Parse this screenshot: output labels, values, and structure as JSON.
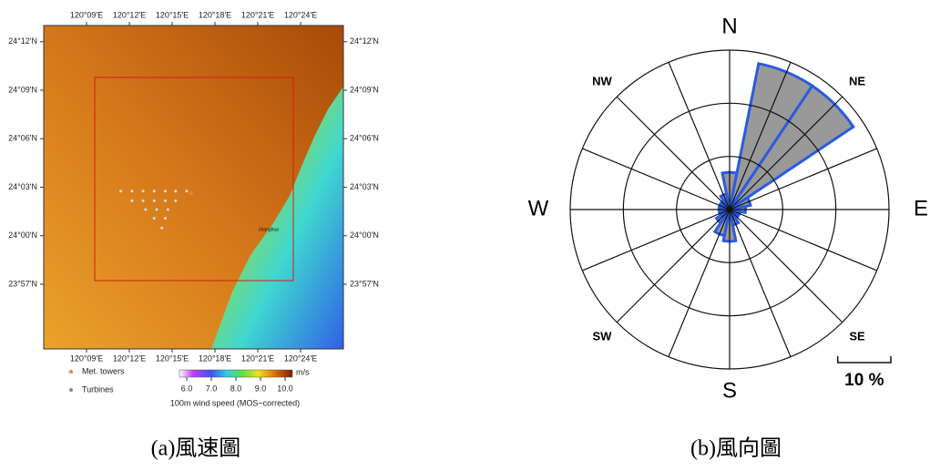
{
  "chart_data": [
    {
      "type": "map",
      "caption": "(a)風速圖",
      "xlim": [
        120.1,
        120.45
      ],
      "ylim": [
        23.8833,
        24.2167
      ],
      "xticks": [
        {
          "value": 120.15,
          "label": "120°09'E"
        },
        {
          "value": 120.2,
          "label": "120°12'E"
        },
        {
          "value": 120.25,
          "label": "120°15'E"
        },
        {
          "value": 120.3,
          "label": "120°18'E"
        },
        {
          "value": 120.35,
          "label": "120°21'E"
        },
        {
          "value": 120.4,
          "label": "120°24'E"
        }
      ],
      "yticks": [
        {
          "value": 24.2,
          "label": "24°12'N"
        },
        {
          "value": 24.15,
          "label": "24°09'N"
        },
        {
          "value": 24.1,
          "label": "24°06'N"
        },
        {
          "value": 24.05,
          "label": "24°03'N"
        },
        {
          "value": 24.0,
          "label": "24°00'N"
        },
        {
          "value": 23.95,
          "label": "23°57'N"
        }
      ],
      "series": [
        {
          "name": "Met. towers",
          "color": "#f08030",
          "x": [
            120.272
          ],
          "y": [
            24.044
          ]
        },
        {
          "name": "Turbines",
          "color": "#d8d8d8",
          "x": [
            120.19,
            120.203,
            120.216,
            120.229,
            120.242,
            120.254,
            120.267,
            120.203,
            120.216,
            120.229,
            120.242,
            120.254,
            120.219,
            120.232,
            120.245,
            120.229,
            120.242,
            120.238
          ],
          "y": [
            24.046,
            24.046,
            24.046,
            24.046,
            24.046,
            24.046,
            24.046,
            24.036,
            24.036,
            24.036,
            24.036,
            24.036,
            24.027,
            24.027,
            24.027,
            24.018,
            24.018,
            24.008
          ]
        }
      ],
      "annotations": [
        "changhua"
      ],
      "colorbar": {
        "label": "100m wind speed (MOS−corrected)",
        "unit": "m/s",
        "clim": [
          6,
          10
        ],
        "ticks": [
          {
            "value": 6,
            "label": "6.0"
          },
          {
            "value": 7,
            "label": "7.0"
          },
          {
            "value": 8,
            "label": "8.0"
          },
          {
            "value": 9,
            "label": "9.0"
          },
          {
            "value": 10,
            "label": "10.0"
          }
        ]
      }
    },
    {
      "type": "wind_rose",
      "caption": "(b)風向圖",
      "categories": [
        "N",
        null,
        "NE",
        null,
        "E",
        null,
        "SE",
        null,
        "S",
        null,
        "SW",
        null,
        "W",
        null,
        "NW",
        null
      ],
      "values": [
        7,
        28,
        28,
        4,
        3,
        2,
        2,
        3,
        6,
        5,
        3,
        2,
        2,
        2,
        2,
        3
      ],
      "color": "#999999",
      "edge_color": "#2a5ce0",
      "rlim": [
        0,
        30
      ],
      "rticks": [
        10,
        20,
        30
      ],
      "scale": {
        "value": 10,
        "label": "10 %"
      }
    }
  ]
}
